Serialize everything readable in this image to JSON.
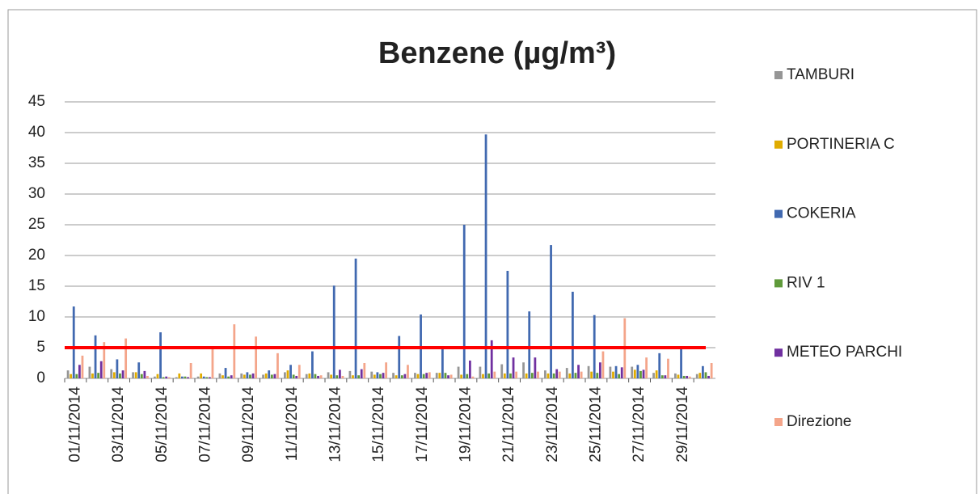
{
  "chart_data": {
    "type": "bar",
    "title": "Benzene (µg/m³)",
    "categories": [
      "01/11/2014",
      null,
      "03/11/2014",
      null,
      "05/11/2014",
      null,
      "07/11/2014",
      null,
      "09/11/2014",
      null,
      "11/11/2014",
      null,
      "13/11/2014",
      null,
      "15/11/2014",
      null,
      "17/11/2014",
      null,
      "19/11/2014",
      null,
      "21/11/2014",
      null,
      "23/11/2014",
      null,
      "25/11/2014",
      null,
      "27/11/2014",
      null,
      "29/11/2014",
      null
    ],
    "series": [
      {
        "name": "TAMBURI",
        "color": "#969696",
        "values": [
          1.3,
          1.9,
          1.5,
          1.0,
          0.3,
          0.2,
          0.3,
          0.8,
          0.8,
          0.6,
          1.0,
          0.7,
          1.0,
          1.2,
          1.1,
          0.9,
          0.9,
          0.9,
          1.9,
          1.9,
          2.3,
          2.6,
          1.3,
          1.7,
          2.0,
          1.9,
          1.9,
          0.9,
          0.8,
          0.7
        ]
      },
      {
        "name": "PORTINERIA C",
        "color": "#e0ac00",
        "values": [
          0.7,
          0.8,
          1.0,
          1.0,
          0.7,
          0.8,
          0.8,
          0.5,
          0.6,
          0.8,
          1.3,
          0.8,
          0.6,
          0.5,
          0.6,
          0.5,
          0.7,
          0.9,
          0.6,
          0.7,
          0.8,
          0.8,
          0.8,
          0.8,
          1.1,
          1.1,
          1.4,
          1.3,
          0.6,
          0.9
        ]
      },
      {
        "name": "COKERIA",
        "color": "#4169b0",
        "values": [
          11.7,
          7.0,
          3.1,
          2.6,
          7.5,
          0.3,
          0.3,
          1.7,
          1.0,
          1.3,
          2.2,
          4.4,
          15.1,
          19.5,
          1.0,
          6.9,
          10.4,
          4.8,
          25.0,
          39.7,
          17.5,
          10.9,
          21.7,
          14.1,
          10.3,
          2.0,
          2.2,
          4.1,
          4.8,
          2.0
        ]
      },
      {
        "name": "RIV 1",
        "color": "#5f9a3a",
        "values": [
          0.7,
          0.9,
          0.8,
          0.7,
          0.2,
          0.3,
          0.2,
          0.3,
          0.6,
          0.6,
          0.6,
          0.7,
          0.5,
          0.5,
          0.7,
          0.5,
          0.7,
          0.9,
          0.7,
          0.8,
          0.8,
          0.9,
          0.8,
          0.9,
          0.9,
          0.7,
          1.2,
          0.5,
          0.4,
          1.0
        ]
      },
      {
        "name": "METEO PARCHI",
        "color": "#7030a0",
        "values": [
          2.2,
          2.8,
          1.3,
          1.2,
          0.3,
          0.2,
          0.2,
          0.5,
          0.8,
          0.7,
          0.4,
          0.4,
          1.4,
          1.5,
          0.9,
          0.7,
          0.9,
          0.5,
          2.9,
          6.2,
          3.4,
          3.4,
          1.5,
          2.2,
          2.6,
          1.8,
          1.4,
          0.5,
          0.4,
          0.4
        ]
      },
      {
        "name": "Direzione",
        "color": "#f4a58a",
        "values": [
          3.7,
          5.9,
          6.5,
          0.4,
          0.2,
          2.5,
          4.9,
          8.8,
          6.8,
          4.1,
          2.2,
          0.5,
          0.4,
          2.5,
          2.6,
          2.2,
          1.0,
          0.6,
          0.3,
          1.1,
          1.1,
          1.1,
          1.1,
          1.1,
          4.4,
          9.8,
          3.4,
          3.2,
          0.3,
          2.5
        ]
      }
    ],
    "ylim": [
      0,
      45
    ],
    "yticks": [
      0,
      5,
      10,
      15,
      20,
      25,
      30,
      35,
      40,
      45
    ],
    "grid": true,
    "threshold": 5,
    "threshold_color": "#ff0000",
    "legend": "right"
  }
}
